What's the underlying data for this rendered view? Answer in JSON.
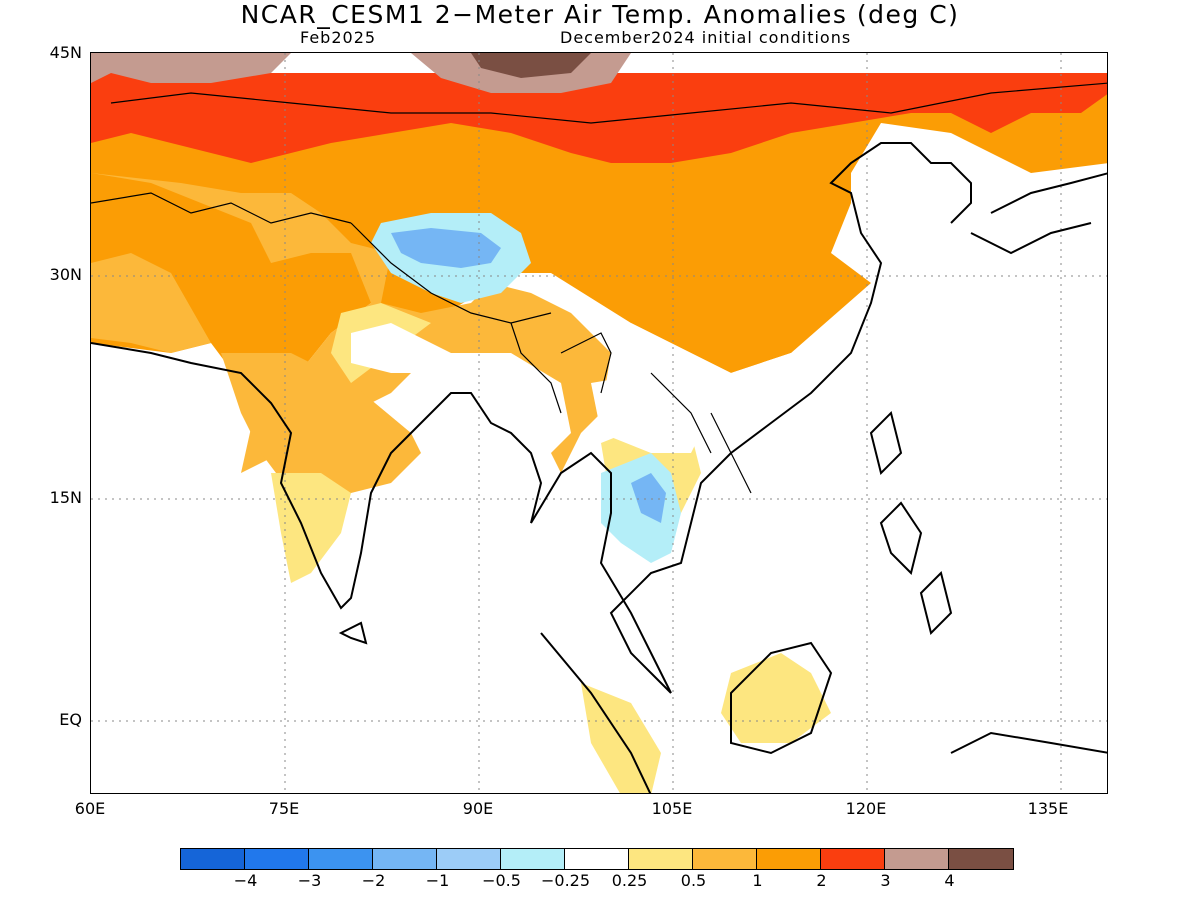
{
  "header": {
    "title": "NCAR_CESM1 2−Meter Air Temp. Anomalies (deg C)",
    "forecast_month": "Feb2025",
    "init_conditions": "December2024 initial conditions"
  },
  "axes": {
    "lat_labels": [
      "45N",
      "30N",
      "15N",
      "EQ"
    ],
    "lon_labels": [
      "60E",
      "75E",
      "90E",
      "105E",
      "120E",
      "135E"
    ]
  },
  "colorbar": {
    "colors": [
      "#1565d8",
      "#2178ec",
      "#3c93f0",
      "#75b6f4",
      "#9cccf7",
      "#b4eef8",
      "#ffffff",
      "#fde680",
      "#fcb83a",
      "#fb9d05",
      "#fa3e0f",
      "#c49b90",
      "#7a4f43"
    ],
    "labels": [
      "−4",
      "−3",
      "−2",
      "−1",
      "−0.5",
      "−0.25",
      "0.25",
      "0.5",
      "1",
      "2",
      "3",
      "4"
    ]
  }
}
